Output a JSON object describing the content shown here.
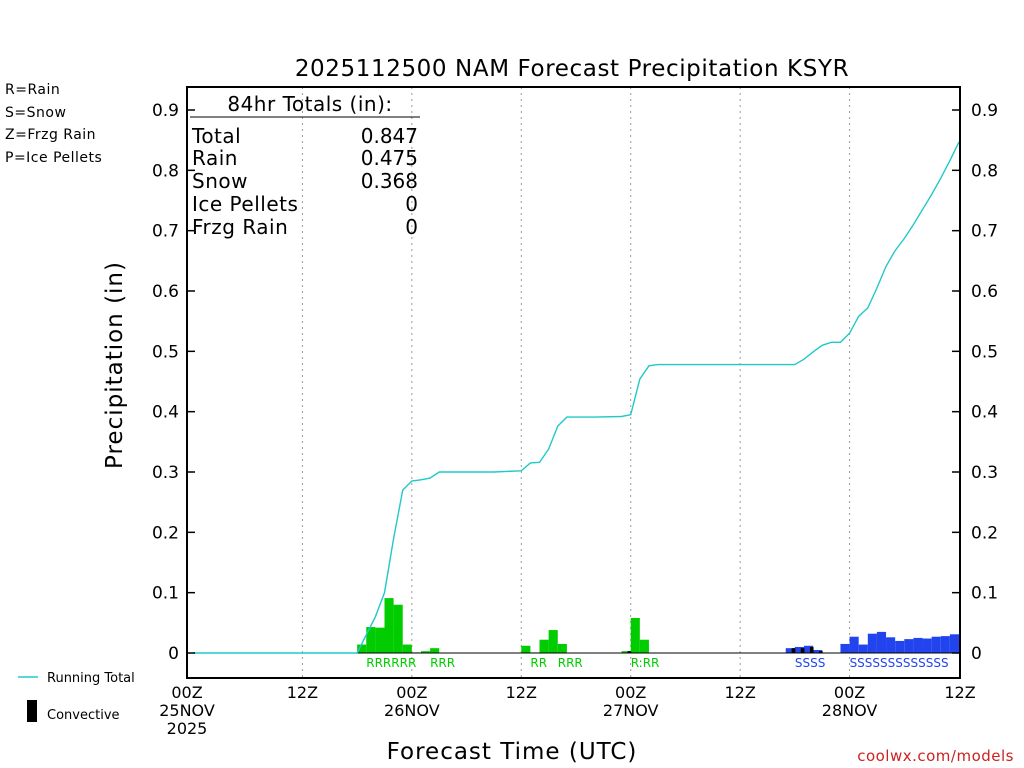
{
  "chart_data": {
    "type": "bar",
    "title": "2025112500 NAM Forecast Precipitation KSYR",
    "xlabel": "Forecast Time (UTC)",
    "ylabel": "Precipitation (in)",
    "ylim": [
      0,
      0.9
    ],
    "yticks": [
      0,
      0.1,
      0.2,
      0.3,
      0.4,
      0.5,
      0.6,
      0.7,
      0.8,
      0.9
    ],
    "ytick_labels": [
      "0",
      "0.1",
      "0.2",
      "0.3",
      "0.4",
      "0.5",
      "0.6",
      "0.7",
      "0.8",
      "0.9"
    ],
    "xlim_hours": [
      0,
      84
    ],
    "xticks": [
      {
        "hour": 0,
        "lines": [
          "00Z",
          "25NOV",
          "2025"
        ]
      },
      {
        "hour": 12,
        "lines": [
          "12Z"
        ]
      },
      {
        "hour": 24,
        "lines": [
          "00Z",
          "26NOV"
        ]
      },
      {
        "hour": 36,
        "lines": [
          "12Z"
        ]
      },
      {
        "hour": 48,
        "lines": [
          "00Z",
          "27NOV"
        ]
      },
      {
        "hour": 60,
        "lines": [
          "12Z"
        ]
      },
      {
        "hour": 72,
        "lines": [
          "00Z",
          "28NOV"
        ]
      },
      {
        "hour": 84,
        "lines": [
          "12Z"
        ]
      }
    ],
    "grid_hours": [
      12,
      24,
      36,
      48,
      60,
      72
    ],
    "series": [
      {
        "name": "Rain",
        "color": "#00cc00",
        "bars": [
          {
            "hour": 19,
            "value": 0.014
          },
          {
            "hour": 20,
            "value": 0.043
          },
          {
            "hour": 21,
            "value": 0.042
          },
          {
            "hour": 22,
            "value": 0.091
          },
          {
            "hour": 23,
            "value": 0.08
          },
          {
            "hour": 24,
            "value": 0.014
          },
          {
            "hour": 25,
            "value": 0.001
          },
          {
            "hour": 26,
            "value": 0.003
          },
          {
            "hour": 27,
            "value": 0.008
          },
          {
            "hour": 37,
            "value": 0.012
          },
          {
            "hour": 38,
            "value": 0.001
          },
          {
            "hour": 39,
            "value": 0.022
          },
          {
            "hour": 40,
            "value": 0.038
          },
          {
            "hour": 41,
            "value": 0.015
          },
          {
            "hour": 48,
            "value": 0.003
          },
          {
            "hour": 49,
            "value": 0.058
          },
          {
            "hour": 50,
            "value": 0.022
          }
        ]
      },
      {
        "name": "Snow",
        "color": "#2244ee",
        "bars": [
          {
            "hour": 66,
            "value": 0.008
          },
          {
            "hour": 67,
            "value": 0.01
          },
          {
            "hour": 68,
            "value": 0.012
          },
          {
            "hour": 69,
            "value": 0.005
          },
          {
            "hour": 72,
            "value": 0.015
          },
          {
            "hour": 73,
            "value": 0.027
          },
          {
            "hour": 74,
            "value": 0.014
          },
          {
            "hour": 75,
            "value": 0.032
          },
          {
            "hour": 76,
            "value": 0.035
          },
          {
            "hour": 77,
            "value": 0.026
          },
          {
            "hour": 78,
            "value": 0.02
          },
          {
            "hour": 79,
            "value": 0.023
          },
          {
            "hour": 80,
            "value": 0.025
          },
          {
            "hour": 81,
            "value": 0.024
          },
          {
            "hour": 82,
            "value": 0.027
          },
          {
            "hour": 83,
            "value": 0.028
          },
          {
            "hour": 84,
            "value": 0.031
          }
        ]
      },
      {
        "name": "Convective",
        "color": "#000000",
        "bars": [
          {
            "hour": 48,
            "value": 0.003
          },
          {
            "hour": 66,
            "value": 0.008
          },
          {
            "hour": 67,
            "value": 0.008
          },
          {
            "hour": 68,
            "value": 0.01
          },
          {
            "hour": 69,
            "value": 0.003
          }
        ]
      },
      {
        "name": "Running Total",
        "color": "#22c8c8",
        "points": [
          [
            0,
            0
          ],
          [
            18,
            0
          ],
          [
            19,
            0.03
          ],
          [
            20,
            0.06
          ],
          [
            21,
            0.1
          ],
          [
            22,
            0.19
          ],
          [
            23,
            0.27
          ],
          [
            24,
            0.285
          ],
          [
            25,
            0.287
          ],
          [
            26,
            0.29
          ],
          [
            27,
            0.3
          ],
          [
            30,
            0.3
          ],
          [
            33,
            0.3
          ],
          [
            36,
            0.302
          ],
          [
            37,
            0.315
          ],
          [
            38,
            0.316
          ],
          [
            39,
            0.338
          ],
          [
            40,
            0.376
          ],
          [
            41,
            0.391
          ],
          [
            44,
            0.391
          ],
          [
            47,
            0.392
          ],
          [
            48,
            0.395
          ],
          [
            49,
            0.454
          ],
          [
            50,
            0.476
          ],
          [
            51,
            0.478
          ],
          [
            57,
            0.478
          ],
          [
            63,
            0.478
          ],
          [
            66,
            0.478
          ],
          [
            67,
            0.487
          ],
          [
            68,
            0.499
          ],
          [
            69,
            0.51
          ],
          [
            70,
            0.515
          ],
          [
            71,
            0.515
          ],
          [
            72,
            0.53
          ],
          [
            73,
            0.558
          ],
          [
            74,
            0.572
          ],
          [
            75,
            0.605
          ],
          [
            76,
            0.641
          ],
          [
            77,
            0.667
          ],
          [
            78,
            0.687
          ],
          [
            79,
            0.71
          ],
          [
            80,
            0.735
          ],
          [
            81,
            0.76
          ],
          [
            82,
            0.787
          ],
          [
            83,
            0.816
          ],
          [
            84,
            0.847
          ]
        ]
      }
    ],
    "ptype_labels": [
      {
        "hour": 19.5,
        "text": "RRRRRR",
        "color": "#00cc00"
      },
      {
        "hour": 26.5,
        "text": "RRR",
        "color": "#00cc00"
      },
      {
        "hour": 37.5,
        "text": "RR",
        "color": "#00cc00"
      },
      {
        "hour": 40.5,
        "text": "RRR",
        "color": "#00cc00"
      },
      {
        "hour": 48.5,
        "text": "R:RR",
        "color": "#00cc00"
      },
      {
        "hour": 66.5,
        "text": "SSSS",
        "color": "#2244ee"
      },
      {
        "hour": 72.5,
        "text": "SSSSSSSSSSSSS",
        "color": "#2244ee"
      }
    ],
    "totals_box": {
      "header": "84hr Totals (in):",
      "rows": [
        {
          "label": "Total",
          "value": "0.847"
        },
        {
          "label": "Rain",
          "value": "0.475"
        },
        {
          "label": "Snow",
          "value": "0.368"
        },
        {
          "label": "Ice Pellets",
          "value": "0"
        },
        {
          "label": "Frzg Rain",
          "value": "0"
        }
      ]
    }
  },
  "ptype_legend": [
    {
      "text": "R=Rain",
      "color": "#22cc22"
    },
    {
      "text": "S=Snow",
      "color": "#3355ee"
    },
    {
      "text": "Z=Frzg Rain",
      "color": "#ee8833"
    },
    {
      "text": "P=Ice Pellets",
      "color": "#ee22aa"
    }
  ],
  "bottom_legend": {
    "running_total": "Running Total",
    "convective": "Convective"
  },
  "credit": "coolwx.com/models"
}
